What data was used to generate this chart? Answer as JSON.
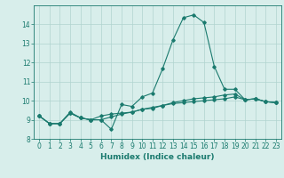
{
  "title": "",
  "xlabel": "Humidex (Indice chaleur)",
  "ylabel": "",
  "x": [
    0,
    1,
    2,
    3,
    4,
    5,
    6,
    7,
    8,
    9,
    10,
    11,
    12,
    13,
    14,
    15,
    16,
    17,
    18,
    19,
    20,
    21,
    22,
    23
  ],
  "line1": [
    9.2,
    8.8,
    8.8,
    9.4,
    9.1,
    9.0,
    9.0,
    8.5,
    9.8,
    9.7,
    10.2,
    10.4,
    11.7,
    13.2,
    14.35,
    14.5,
    14.1,
    11.8,
    10.6,
    10.6,
    10.05,
    10.1,
    9.95,
    9.9
  ],
  "line2": [
    9.2,
    8.8,
    8.8,
    9.35,
    9.1,
    9.0,
    9.2,
    9.3,
    9.35,
    9.4,
    9.55,
    9.6,
    9.75,
    9.9,
    10.0,
    10.1,
    10.15,
    10.2,
    10.3,
    10.35,
    10.05,
    10.1,
    9.95,
    9.9
  ],
  "line3": [
    9.2,
    8.8,
    8.8,
    9.35,
    9.1,
    9.0,
    9.0,
    9.15,
    9.3,
    9.4,
    9.55,
    9.65,
    9.75,
    9.85,
    9.9,
    9.95,
    10.0,
    10.05,
    10.1,
    10.2,
    10.05,
    10.1,
    9.95,
    9.9
  ],
  "line_color": "#1a7a6e",
  "bg_color": "#d8eeeb",
  "grid_color": "#b0d4cf",
  "ylim": [
    8,
    15
  ],
  "xlim": [
    -0.5,
    23.5
  ],
  "yticks": [
    8,
    9,
    10,
    11,
    12,
    13,
    14
  ],
  "xticks": [
    0,
    1,
    2,
    3,
    4,
    5,
    6,
    7,
    8,
    9,
    10,
    11,
    12,
    13,
    14,
    15,
    16,
    17,
    18,
    19,
    20,
    21,
    22,
    23
  ],
  "tick_fontsize": 5.5,
  "label_fontsize": 6.5,
  "marker": "D",
  "marker_size": 1.8,
  "line_width": 0.8
}
